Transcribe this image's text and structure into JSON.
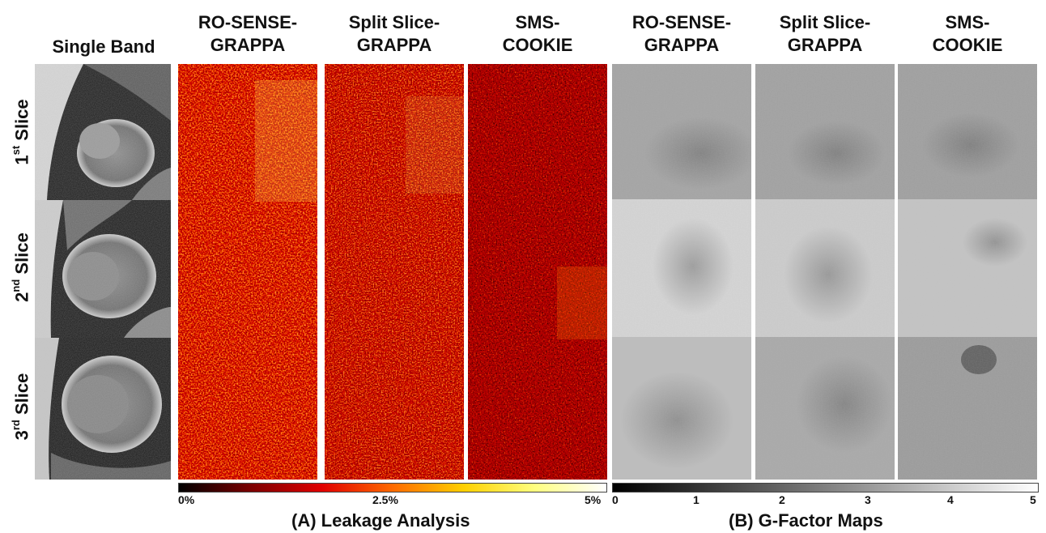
{
  "headers": {
    "single_band": "Single Band",
    "ro_sense_grappa_a": [
      "RO-SENSE-",
      "GRAPPA"
    ],
    "split_slice_grappa_a": [
      "Split Slice-",
      "GRAPPA"
    ],
    "sms_cookie_a": [
      "SMS-",
      "COOKIE"
    ],
    "ro_sense_grappa_b": [
      "RO-SENSE-",
      "GRAPPA"
    ],
    "split_slice_grappa_b": [
      "Split Slice-",
      "GRAPPA"
    ],
    "sms_cookie_b": [
      "SMS-",
      "COOKIE"
    ]
  },
  "rows": [
    {
      "num": "1",
      "sup": "st",
      "word": "Slice"
    },
    {
      "num": "2",
      "sup": "nd",
      "word": "Slice"
    },
    {
      "num": "3",
      "sup": "rd",
      "word": "Slice"
    }
  ],
  "leakage_colorbar": {
    "ticks": [
      "0%",
      "2.5%",
      "5%"
    ],
    "colors": [
      "#000000",
      "#7a0000",
      "#e00000",
      "#ff6a00",
      "#ffd000",
      "#ffff80",
      "#ffffff"
    ]
  },
  "gfactor_colorbar": {
    "ticks": [
      "0",
      "1",
      "2",
      "3",
      "4",
      "5"
    ],
    "colors": [
      "#000000",
      "#ffffff"
    ]
  },
  "captions": {
    "a": "(A) Leakage Analysis",
    "b": "(B) G-Factor Maps"
  }
}
